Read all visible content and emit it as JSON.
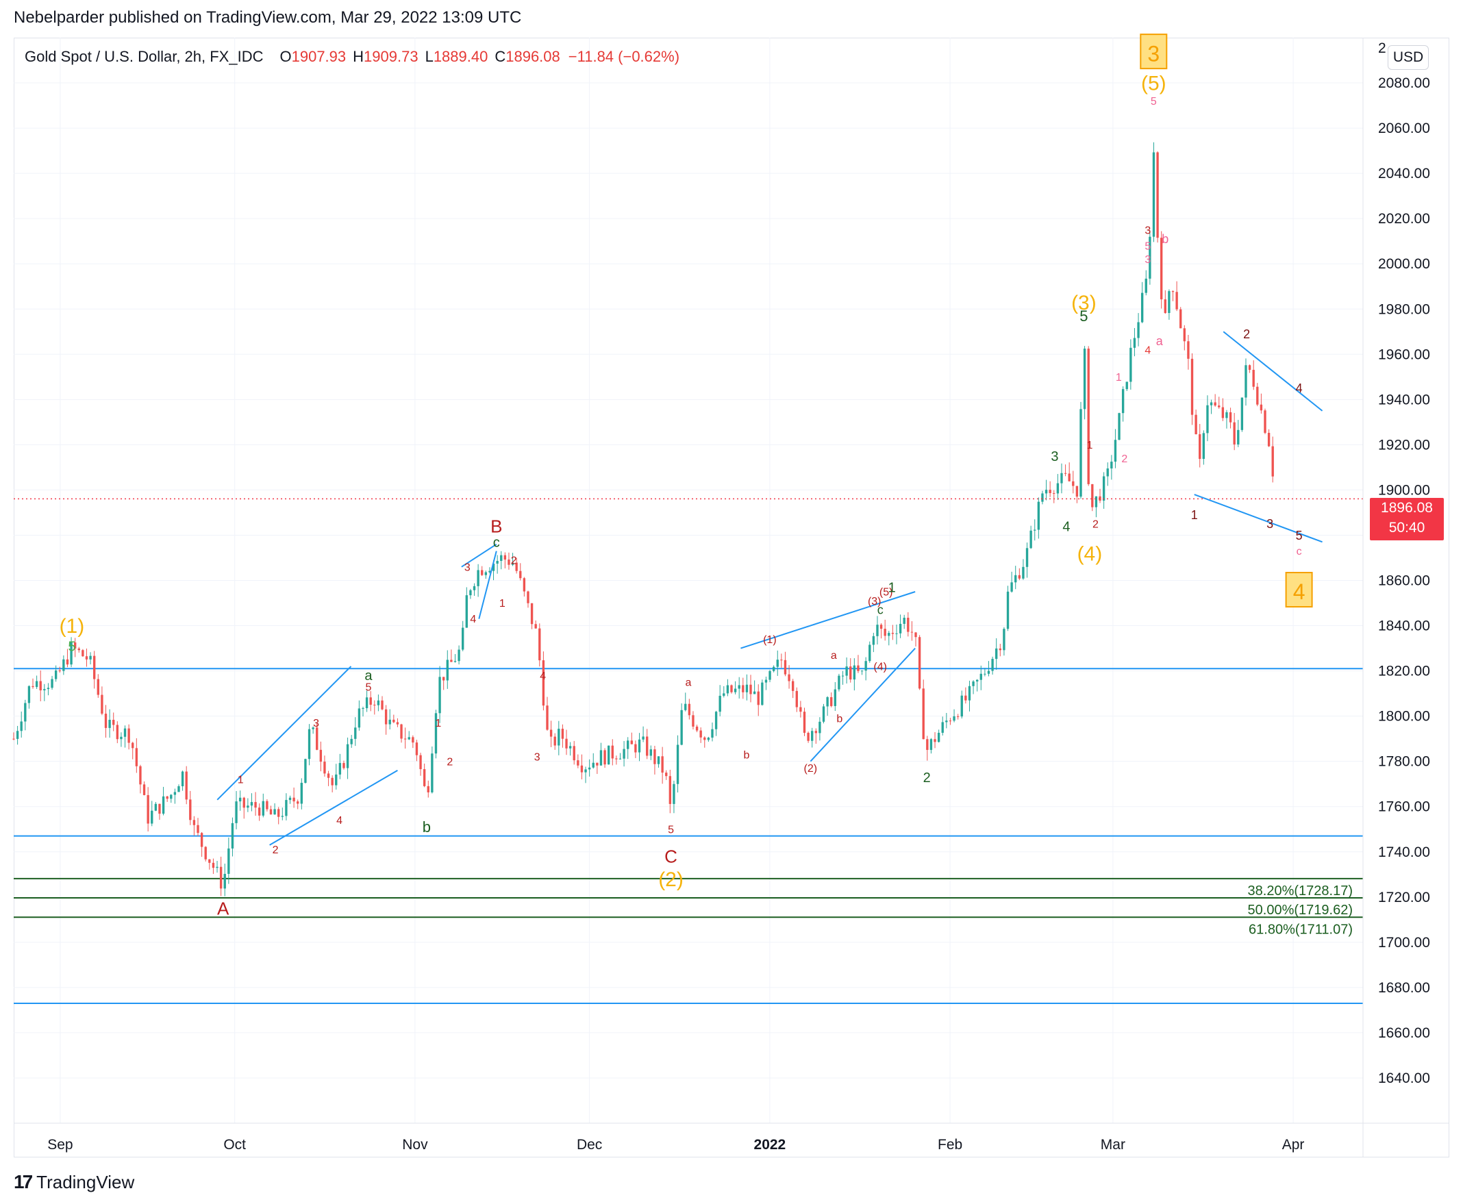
{
  "header": {
    "publisher_line": "Nebelparder published on TradingView.com, Mar 29, 2022 13:09 UTC"
  },
  "legend": {
    "symbol": "Gold Spot / U.S. Dollar, 2h, FX_IDC",
    "open_label": "O",
    "open": "1907.93",
    "high_label": "H",
    "high": "1909.73",
    "low_label": "L",
    "low": "1889.40",
    "close_label": "C",
    "close": "1896.08",
    "change": "−11.84 (−0.62%)"
  },
  "currency_button": "USD",
  "last_price": {
    "price": "1896.08",
    "countdown": "50:40"
  },
  "brand": {
    "name": "TradingView",
    "mark": "17"
  },
  "colors": {
    "up": "#26a69a",
    "down": "#ef5350",
    "trendline": "#2196f3",
    "fib": "#1b5e20",
    "wave_orange": "#f5b30b",
    "wave_red": "#b71c1c",
    "wave_green": "#1b5e20",
    "wave_pink": "#f06292"
  },
  "chart_data": {
    "type": "candlestick",
    "title": "Gold Spot / U.S. Dollar, 2h, FX_IDC",
    "ylabel": "USD",
    "ylim": [
      1620,
      2100
    ],
    "y_ticks": [
      1640,
      1660,
      1680,
      1700,
      1720,
      1740,
      1760,
      1780,
      1800,
      1820,
      1840,
      1860,
      1880,
      1900,
      1920,
      1940,
      1960,
      1980,
      2000,
      2020,
      2040,
      2060,
      2080
    ],
    "y_tick_labels": [
      "1640.00",
      "1660.00",
      "1680.00",
      "1700.00",
      "1720.00",
      "1740.00",
      "1760.00",
      "1780.00",
      "1800.00",
      "1820.00",
      "1840.00",
      "1860.00",
      "1880.00",
      "1900.00",
      "1920.00",
      "1940.00",
      "1960.00",
      "1980.00",
      "2000.00",
      "2020.00",
      "2040.00",
      "2060.00",
      "2080.00"
    ],
    "x_labels": [
      {
        "date": "2021-09-01",
        "label": "Sep"
      },
      {
        "date": "2021-10-01",
        "label": "Oct"
      },
      {
        "date": "2021-11-01",
        "label": "Nov"
      },
      {
        "date": "2021-12-01",
        "label": "Dec"
      },
      {
        "date": "2022-01-01",
        "label": "2022"
      },
      {
        "date": "2022-02-01",
        "label": "Feb"
      },
      {
        "date": "2022-03-01",
        "label": "Mar"
      },
      {
        "date": "2022-04-01",
        "label": "Apr"
      }
    ],
    "x_range": [
      "2021-08-24",
      "2022-04-13"
    ],
    "price_path": [
      [
        "2021-08-24",
        1790
      ],
      [
        "2021-08-27",
        1815
      ],
      [
        "2021-08-31",
        1815
      ],
      [
        "2021-09-03",
        1830
      ],
      [
        "2021-09-06",
        1825
      ],
      [
        "2021-09-09",
        1795
      ],
      [
        "2021-09-13",
        1792
      ],
      [
        "2021-09-16",
        1755
      ],
      [
        "2021-09-20",
        1765
      ],
      [
        "2021-09-22",
        1775
      ],
      [
        "2021-09-24",
        1750
      ],
      [
        "2021-09-29",
        1725
      ],
      [
        "2021-10-01",
        1760
      ],
      [
        "2021-10-05",
        1760
      ],
      [
        "2021-10-08",
        1755
      ],
      [
        "2021-10-12",
        1765
      ],
      [
        "2021-10-14",
        1795
      ],
      [
        "2021-10-18",
        1768
      ],
      [
        "2021-10-20",
        1782
      ],
      [
        "2021-10-22",
        1800
      ],
      [
        "2021-10-25",
        1808
      ],
      [
        "2021-10-28",
        1795
      ],
      [
        "2021-11-01",
        1788
      ],
      [
        "2021-11-03",
        1763
      ],
      [
        "2021-11-05",
        1815
      ],
      [
        "2021-11-09",
        1830
      ],
      [
        "2021-11-10",
        1855
      ],
      [
        "2021-11-12",
        1865
      ],
      [
        "2021-11-16",
        1870
      ],
      [
        "2021-11-18",
        1868
      ],
      [
        "2021-11-22",
        1835
      ],
      [
        "2021-11-24",
        1786
      ],
      [
        "2021-11-26",
        1792
      ],
      [
        "2021-11-30",
        1778
      ],
      [
        "2021-12-03",
        1782
      ],
      [
        "2021-12-07",
        1785
      ],
      [
        "2021-12-10",
        1788
      ],
      [
        "2021-12-14",
        1775
      ],
      [
        "2021-12-15",
        1757
      ],
      [
        "2021-12-17",
        1805
      ],
      [
        "2021-12-21",
        1790
      ],
      [
        "2021-12-24",
        1810
      ],
      [
        "2021-12-28",
        1812
      ],
      [
        "2021-12-30",
        1808
      ],
      [
        "2022-01-03",
        1825
      ],
      [
        "2022-01-05",
        1815
      ],
      [
        "2022-01-07",
        1790
      ],
      [
        "2022-01-10",
        1800
      ],
      [
        "2022-01-14",
        1820
      ],
      [
        "2022-01-17",
        1818
      ],
      [
        "2022-01-19",
        1840
      ],
      [
        "2022-01-21",
        1835
      ],
      [
        "2022-01-24",
        1843
      ],
      [
        "2022-01-26",
        1835
      ],
      [
        "2022-01-27",
        1800
      ],
      [
        "2022-01-28",
        1785
      ],
      [
        "2022-02-01",
        1800
      ],
      [
        "2022-02-04",
        1808
      ],
      [
        "2022-02-07",
        1820
      ],
      [
        "2022-02-10",
        1835
      ],
      [
        "2022-02-11",
        1855
      ],
      [
        "2022-02-14",
        1870
      ],
      [
        "2022-02-17",
        1900
      ],
      [
        "2022-02-21",
        1905
      ],
      [
        "2022-02-23",
        1900
      ],
      [
        "2022-02-24",
        1970
      ],
      [
        "2022-02-25",
        1890
      ],
      [
        "2022-02-28",
        1905
      ],
      [
        "2022-03-02",
        1930
      ],
      [
        "2022-03-04",
        1960
      ],
      [
        "2022-03-07",
        1995
      ],
      [
        "2022-03-08",
        2050
      ],
      [
        "2022-03-09",
        1995
      ],
      [
        "2022-03-10",
        1975
      ],
      [
        "2022-03-11",
        1995
      ],
      [
        "2022-03-14",
        1955
      ],
      [
        "2022-03-15",
        1925
      ],
      [
        "2022-03-16",
        1910
      ],
      [
        "2022-03-17",
        1940
      ],
      [
        "2022-03-21",
        1930
      ],
      [
        "2022-03-22",
        1920
      ],
      [
        "2022-03-24",
        1955
      ],
      [
        "2022-03-25",
        1950
      ],
      [
        "2022-03-28",
        1920
      ],
      [
        "2022-03-29",
        1896
      ]
    ],
    "candle_step_days": 0.66,
    "last_close": 1896.08,
    "horizontal_lines": [
      {
        "price": 1821,
        "color": "#2196f3"
      },
      {
        "price": 1747,
        "color": "#2196f3"
      },
      {
        "price": 1673,
        "color": "#2196f3"
      }
    ],
    "fib_levels": [
      {
        "price": 1728.17,
        "label": "38.20%(1728.17)"
      },
      {
        "price": 1719.62,
        "label": "50.00%(1719.62)"
      },
      {
        "price": 1711.07,
        "label": "61.80%(1711.07)"
      }
    ],
    "trendlines": [
      [
        [
          "2021-09-28",
          1763
        ],
        [
          "2021-10-21",
          1822
        ]
      ],
      [
        [
          "2021-10-07",
          1743
        ],
        [
          "2021-10-29",
          1776
        ]
      ],
      [
        [
          "2021-11-09",
          1866
        ],
        [
          "2021-11-15",
          1876
        ]
      ],
      [
        [
          "2021-11-12",
          1843
        ],
        [
          "2021-11-15",
          1873
        ]
      ],
      [
        [
          "2021-12-27",
          1830
        ],
        [
          "2022-01-26",
          1855
        ]
      ],
      [
        [
          "2022-01-08",
          1780
        ],
        [
          "2022-01-26",
          1830
        ]
      ],
      [
        [
          "2022-03-20",
          1970
        ],
        [
          "2022-04-06",
          1935
        ]
      ],
      [
        [
          "2022-03-15",
          1898
        ],
        [
          "2022-04-06",
          1877
        ]
      ]
    ],
    "wave_labels": [
      {
        "t": "2021-09-03",
        "p": 1840,
        "text": "(1)",
        "color": "orange",
        "size": 30
      },
      {
        "t": "2021-09-03",
        "p": 1837,
        "text": "5",
        "color": "green2",
        "size": 20,
        "dy": 20
      },
      {
        "t": "2021-09-29",
        "p": 1715,
        "text": "A",
        "color": "red",
        "size": 26
      },
      {
        "t": "2021-10-02",
        "p": 1772,
        "text": "1",
        "color": "red",
        "size": 16
      },
      {
        "t": "2021-10-08",
        "p": 1741,
        "text": "2",
        "color": "red",
        "size": 16
      },
      {
        "t": "2021-10-15",
        "p": 1797,
        "text": "3",
        "color": "red",
        "size": 16
      },
      {
        "t": "2021-10-19",
        "p": 1754,
        "text": "4",
        "color": "red",
        "size": 16
      },
      {
        "t": "2021-10-24",
        "p": 1813,
        "text": "5",
        "color": "red",
        "size": 16
      },
      {
        "t": "2021-10-24",
        "p": 1818,
        "text": "a",
        "color": "green",
        "size": 20
      },
      {
        "t": "2021-11-03",
        "p": 1751,
        "text": "b",
        "color": "green",
        "size": 22
      },
      {
        "t": "2021-11-05",
        "p": 1797,
        "text": "1",
        "color": "red",
        "size": 16
      },
      {
        "t": "2021-11-07",
        "p": 1780,
        "text": "2",
        "color": "red",
        "size": 16
      },
      {
        "t": "2021-11-10",
        "p": 1866,
        "text": "3",
        "color": "red",
        "size": 16
      },
      {
        "t": "2021-11-11",
        "p": 1843,
        "text": "4",
        "color": "red",
        "size": 16
      },
      {
        "t": "2021-11-15",
        "p": 1884,
        "text": "B",
        "color": "red",
        "size": 26
      },
      {
        "t": "2021-11-15",
        "p": 1877,
        "text": "c",
        "color": "green",
        "size": 20
      },
      {
        "t": "2021-11-16",
        "p": 1850,
        "text": "1",
        "color": "red",
        "size": 16
      },
      {
        "t": "2021-11-18",
        "p": 1869,
        "text": "2",
        "color": "red",
        "size": 16
      },
      {
        "t": "2021-11-22",
        "p": 1782,
        "text": "3",
        "color": "red",
        "size": 16
      },
      {
        "t": "2021-11-23",
        "p": 1818,
        "text": "4",
        "color": "red",
        "size": 16
      },
      {
        "t": "2021-12-15",
        "p": 1750,
        "text": "5",
        "color": "red",
        "size": 16
      },
      {
        "t": "2021-12-15",
        "p": 1738,
        "text": "C",
        "color": "red",
        "size": 26
      },
      {
        "t": "2021-12-15",
        "p": 1728,
        "text": "(2)",
        "color": "orange",
        "size": 30
      },
      {
        "t": "2021-12-18",
        "p": 1815,
        "text": "a",
        "color": "red",
        "size": 16
      },
      {
        "t": "2021-12-28",
        "p": 1783,
        "text": "b",
        "color": "red",
        "size": 16
      },
      {
        "t": "2022-01-01",
        "p": 1834,
        "text": "(1)",
        "color": "red",
        "size": 16
      },
      {
        "t": "2022-01-08",
        "p": 1777,
        "text": "(2)",
        "color": "red",
        "size": 16
      },
      {
        "t": "2022-01-12",
        "p": 1827,
        "text": "a",
        "color": "red",
        "size": 16
      },
      {
        "t": "2022-01-13",
        "p": 1799,
        "text": "b",
        "color": "red",
        "size": 16
      },
      {
        "t": "2022-01-19",
        "p": 1851,
        "text": "(3)",
        "color": "red",
        "size": 16
      },
      {
        "t": "2022-01-20",
        "p": 1847,
        "text": "c",
        "color": "green",
        "size": 18
      },
      {
        "t": "2022-01-20",
        "p": 1822,
        "text": "(4)",
        "color": "red",
        "size": 16
      },
      {
        "t": "2022-01-21",
        "p": 1855,
        "text": "(5)",
        "color": "red",
        "size": 16
      },
      {
        "t": "2022-01-22",
        "p": 1857,
        "text": "1",
        "color": "green",
        "size": 20
      },
      {
        "t": "2022-01-28",
        "p": 1773,
        "text": "2",
        "color": "green",
        "size": 20
      },
      {
        "t": "2022-02-19",
        "p": 1915,
        "text": "3",
        "color": "green",
        "size": 20
      },
      {
        "t": "2022-02-21",
        "p": 1884,
        "text": "4",
        "color": "green",
        "size": 20
      },
      {
        "t": "2022-02-24",
        "p": 1983,
        "text": "(3)",
        "color": "orange",
        "size": 30
      },
      {
        "t": "2022-02-24",
        "p": 1977,
        "text": "5",
        "color": "green",
        "size": 22,
        "dy": 0
      },
      {
        "t": "2022-02-25",
        "p": 1872,
        "text": "(4)",
        "color": "orange",
        "size": 30
      },
      {
        "t": "2022-02-25",
        "p": 1920,
        "text": "1",
        "color": "red",
        "size": 16
      },
      {
        "t": "2022-02-26",
        "p": 1885,
        "text": "2",
        "color": "red",
        "size": 16
      },
      {
        "t": "2022-03-02",
        "p": 1950,
        "text": "1",
        "color": "pink",
        "size": 16
      },
      {
        "t": "2022-03-03",
        "p": 1914,
        "text": "2",
        "color": "pink",
        "size": 16
      },
      {
        "t": "2022-03-07",
        "p": 2002,
        "text": "3",
        "color": "pink",
        "size": 16
      },
      {
        "t": "2022-03-07",
        "p": 1962,
        "text": "4",
        "color": "pink2",
        "size": 16
      },
      {
        "t": "2022-03-07",
        "p": 2015,
        "text": "3",
        "color": "red",
        "size": 16
      },
      {
        "t": "2022-03-07",
        "p": 2008,
        "text": "5",
        "color": "pink",
        "size": 16
      },
      {
        "t": "2022-03-08",
        "p": 2072,
        "text": "5",
        "color": "pink",
        "size": 16
      },
      {
        "t": "2022-03-08",
        "p": 2080,
        "text": "(5)",
        "color": "orange",
        "size": 30
      },
      {
        "t": "2022-03-08",
        "p": 2093,
        "text": "3",
        "color": "orange_box",
        "size": 32
      },
      {
        "t": "2022-03-09",
        "p": 1966,
        "text": "a",
        "color": "pink",
        "size": 18
      },
      {
        "t": "2022-03-10",
        "p": 2011,
        "text": "b",
        "color": "pink",
        "size": 18
      },
      {
        "t": "2022-03-15",
        "p": 1889,
        "text": "1",
        "color": "dark",
        "size": 18
      },
      {
        "t": "2022-03-24",
        "p": 1969,
        "text": "2",
        "color": "dark",
        "size": 18
      },
      {
        "t": "2022-03-28",
        "p": 1885,
        "text": "3",
        "color": "dark",
        "size": 18
      },
      {
        "t": "2022-04-02",
        "p": 1945,
        "text": "4",
        "color": "dark",
        "size": 18
      },
      {
        "t": "2022-04-02",
        "p": 1880,
        "text": "5",
        "color": "dark",
        "size": 18
      },
      {
        "t": "2022-04-02",
        "p": 1873,
        "text": "c",
        "color": "pink",
        "size": 16
      },
      {
        "t": "2022-04-02",
        "p": 1855,
        "text": "4",
        "color": "orange_box",
        "size": 32
      }
    ]
  }
}
